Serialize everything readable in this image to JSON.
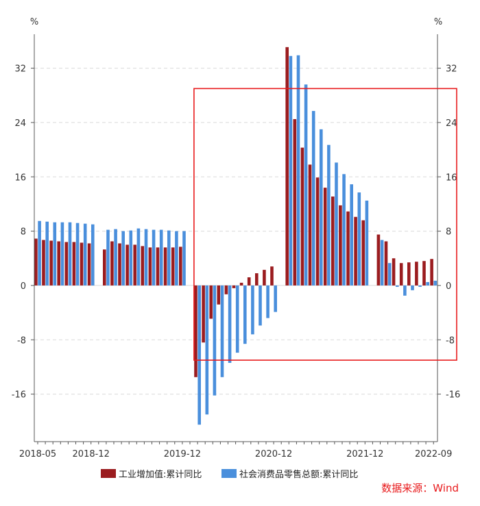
{
  "chart_data": {
    "type": "bar",
    "left_axis_unit": "%",
    "right_axis_unit": "%",
    "y_ticks": [
      32,
      24,
      16,
      8,
      0,
      -8,
      -16
    ],
    "ylim": [
      -23,
      37
    ],
    "x_tick_labels": [
      "2018-05",
      "2018-12",
      "2019-12",
      "2020-12",
      "2021-12",
      "2022-09"
    ],
    "categories": [
      "2018-05",
      "2018-06",
      "2018-07",
      "2018-08",
      "2018-09",
      "2018-10",
      "2018-11",
      "2018-12",
      "2019-01",
      "2019-02",
      "2019-03",
      "2019-04",
      "2019-05",
      "2019-06",
      "2019-07",
      "2019-08",
      "2019-09",
      "2019-10",
      "2019-11",
      "2019-12",
      "2020-01",
      "2020-02",
      "2020-03",
      "2020-04",
      "2020-05",
      "2020-06",
      "2020-07",
      "2020-08",
      "2020-09",
      "2020-10",
      "2020-11",
      "2020-12",
      "2021-01",
      "2021-02",
      "2021-03",
      "2021-04",
      "2021-05",
      "2021-06",
      "2021-07",
      "2021-08",
      "2021-09",
      "2021-10",
      "2021-11",
      "2021-12",
      "2022-01",
      "2022-02",
      "2022-03",
      "2022-04",
      "2022-05",
      "2022-06",
      "2022-07",
      "2022-08",
      "2022-09"
    ],
    "series": [
      {
        "name": "工业增加值:累计同比",
        "color": "#9b1c1f",
        "values": [
          6.9,
          6.7,
          6.6,
          6.5,
          6.4,
          6.4,
          6.3,
          6.2,
          null,
          5.3,
          6.5,
          6.2,
          6.0,
          6.0,
          5.8,
          5.6,
          5.6,
          5.6,
          5.6,
          5.7,
          null,
          -13.5,
          -8.4,
          -4.9,
          -2.8,
          -1.3,
          -0.4,
          0.4,
          1.2,
          1.8,
          2.3,
          2.8,
          null,
          35.1,
          24.5,
          20.3,
          17.8,
          15.9,
          14.4,
          13.1,
          11.8,
          10.9,
          10.1,
          9.6,
          null,
          7.5,
          6.5,
          4.0,
          3.3,
          3.4,
          3.5,
          3.6,
          3.9
        ]
      },
      {
        "name": "社会消费品零售总额:累计同比",
        "color": "#4a8fdc",
        "values": [
          9.5,
          9.4,
          9.3,
          9.3,
          9.3,
          9.2,
          9.1,
          9.0,
          null,
          8.2,
          8.3,
          8.0,
          8.1,
          8.4,
          8.3,
          8.2,
          8.2,
          8.1,
          8.0,
          8.0,
          null,
          -20.5,
          -19.0,
          -16.2,
          -13.5,
          -11.4,
          -9.9,
          -8.6,
          -7.2,
          -5.9,
          -4.8,
          -3.9,
          null,
          33.8,
          33.9,
          29.6,
          25.7,
          23.0,
          20.7,
          18.1,
          16.4,
          14.9,
          13.7,
          12.5,
          null,
          6.7,
          3.3,
          -0.2,
          -1.5,
          -0.7,
          -0.2,
          0.5,
          0.7
        ]
      }
    ],
    "highlight_box": {
      "from_category": "2019-12",
      "y_range": [
        -11,
        29
      ],
      "color": "#e8191b"
    }
  },
  "legend": {
    "items": [
      {
        "label": "工业增加值:累计同比",
        "color": "#9b1c1f"
      },
      {
        "label": "社会消费品零售总额:累计同比",
        "color": "#4a8fdc"
      }
    ]
  },
  "source": {
    "text": "数据来源：Wind",
    "color": "#e8191b"
  }
}
